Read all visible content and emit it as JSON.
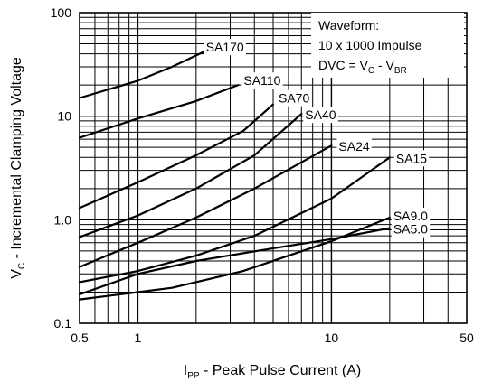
{
  "chart_data": {
    "type": "line",
    "xscale": "log",
    "yscale": "log",
    "xlim": [
      0.5,
      50
    ],
    "ylim": [
      0.1,
      100
    ],
    "grid": true,
    "x_ticks": [
      {
        "value": 0.5,
        "label": "0.5"
      },
      {
        "value": 1,
        "label": "1"
      },
      {
        "value": 10,
        "label": "10"
      },
      {
        "value": 50,
        "label": "50"
      }
    ],
    "y_ticks": [
      {
        "value": 0.1,
        "label": "0.1"
      },
      {
        "value": 1,
        "label": "1.0"
      },
      {
        "value": 10,
        "label": "10"
      },
      {
        "value": 100,
        "label": "100"
      }
    ],
    "xlabel": {
      "main": "I",
      "sub": "PP",
      "rest": " - Peak Pulse Current (A)"
    },
    "ylabel": {
      "main": "V",
      "sub": "C",
      "rest": " - Incremental Clamping Voltage"
    },
    "annotation": {
      "line1": "Waveform:",
      "line2": "10 x 1000 Impulse",
      "line3_a": "DVC = V",
      "line3_sub1": "C",
      "line3_b": " - V",
      "line3_sub2": "BR"
    },
    "series": [
      {
        "name": "SA170",
        "points": [
          [
            0.5,
            15
          ],
          [
            1.0,
            22
          ],
          [
            1.5,
            30
          ],
          [
            2.2,
            42
          ]
        ]
      },
      {
        "name": "SA110",
        "points": [
          [
            0.5,
            6.2
          ],
          [
            1.0,
            9.5
          ],
          [
            2.0,
            14
          ],
          [
            3.3,
            20
          ]
        ]
      },
      {
        "name": "SA70",
        "points": [
          [
            0.5,
            1.3
          ],
          [
            1.0,
            2.3
          ],
          [
            2.0,
            4.2
          ],
          [
            3.5,
            7.2
          ],
          [
            5.0,
            13
          ]
        ]
      },
      {
        "name": "SA40",
        "points": [
          [
            0.5,
            0.68
          ],
          [
            1.0,
            1.1
          ],
          [
            2.0,
            2.0
          ],
          [
            4.0,
            4.2
          ],
          [
            7.0,
            10.5
          ]
        ]
      },
      {
        "name": "SA24",
        "points": [
          [
            0.5,
            0.35
          ],
          [
            1.0,
            0.6
          ],
          [
            2.0,
            1.05
          ],
          [
            4.0,
            2.0
          ],
          [
            10.0,
            5.2
          ]
        ]
      },
      {
        "name": "SA15",
        "points": [
          [
            0.5,
            0.25
          ],
          [
            1.0,
            0.32
          ],
          [
            2.0,
            0.45
          ],
          [
            4.0,
            0.7
          ],
          [
            10.0,
            1.6
          ],
          [
            20.0,
            4.0
          ]
        ]
      },
      {
        "name": "SA9.0",
        "points": [
          [
            0.5,
            0.17
          ],
          [
            1.0,
            0.2
          ],
          [
            1.5,
            0.22
          ],
          [
            3.5,
            0.32
          ],
          [
            10.0,
            0.62
          ],
          [
            20.0,
            1.05
          ]
        ]
      },
      {
        "name": "SA5.0",
        "points": [
          [
            0.5,
            0.19
          ],
          [
            1.0,
            0.3
          ],
          [
            2.0,
            0.4
          ],
          [
            5.0,
            0.53
          ],
          [
            10.0,
            0.65
          ],
          [
            20.0,
            0.83
          ]
        ]
      }
    ]
  }
}
